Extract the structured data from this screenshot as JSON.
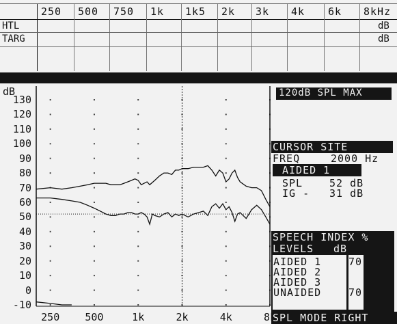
{
  "top_table": {
    "frequencies": [
      "250",
      "500",
      "750",
      "1k",
      "1k5",
      "2k",
      "3k",
      "4k",
      "6k",
      "8kHz"
    ],
    "rows": [
      {
        "label": "HTL",
        "unit": "dB"
      },
      {
        "label": "TARG",
        "unit": "dB"
      }
    ]
  },
  "right_panel": {
    "max_label": "120dB SPL MAX",
    "cursor_title": "CURSOR SITE",
    "freq_label": "FREQ",
    "freq_value": "2000 Hz",
    "aided_label": "AIDED 1",
    "spl_label": "SPL",
    "spl_value": "52 dB",
    "ig_label": "IG -",
    "ig_value": "31 dB",
    "speech_index": "SPEECH INDEX %",
    "levels_label": "LEVELS",
    "levels_unit": "dB",
    "levels": [
      {
        "name": "AIDED 1",
        "value": "70"
      },
      {
        "name": "AIDED 2",
        "value": ""
      },
      {
        "name": "AIDED 3",
        "value": ""
      },
      {
        "name": "UNAIDED",
        "value": "70"
      }
    ],
    "mode": "SPL MODE RIGHT"
  },
  "chart_data": {
    "type": "line",
    "ylabel": "dB",
    "ylim": [
      -10,
      135
    ],
    "y_ticks": [
      130,
      120,
      110,
      100,
      90,
      80,
      70,
      60,
      50,
      40,
      30,
      20,
      10,
      0,
      -10
    ],
    "x_ticks": [
      "250",
      "500",
      "1k",
      "2k",
      "4k",
      "8k"
    ],
    "x_tick_freqs": [
      250,
      500,
      1000,
      2000,
      4000,
      8000
    ],
    "xlim": [
      200,
      8000
    ],
    "cursor_freq": 2000,
    "reference_level": 52,
    "series": [
      {
        "values": [
          [
            200,
            69
          ],
          [
            250,
            70
          ],
          [
            300,
            69
          ],
          [
            350,
            70
          ],
          [
            400,
            71
          ],
          [
            450,
            72
          ],
          [
            500,
            73
          ],
          [
            550,
            73
          ],
          [
            600,
            73
          ],
          [
            650,
            72
          ],
          [
            700,
            72
          ],
          [
            750,
            72
          ],
          [
            800,
            73
          ],
          [
            850,
            74
          ],
          [
            900,
            75
          ],
          [
            950,
            76
          ],
          [
            1000,
            75
          ],
          [
            1050,
            72
          ],
          [
            1100,
            73
          ],
          [
            1150,
            74
          ],
          [
            1200,
            72
          ],
          [
            1300,
            75
          ],
          [
            1400,
            78
          ],
          [
            1500,
            80
          ],
          [
            1600,
            80
          ],
          [
            1700,
            79
          ],
          [
            1800,
            82
          ],
          [
            1900,
            82
          ],
          [
            2000,
            83
          ],
          [
            2200,
            83
          ],
          [
            2400,
            84
          ],
          [
            2600,
            84
          ],
          [
            2800,
            84
          ],
          [
            3000,
            85
          ],
          [
            3200,
            82
          ],
          [
            3400,
            78
          ],
          [
            3600,
            82
          ],
          [
            3800,
            80
          ],
          [
            4000,
            74
          ],
          [
            4200,
            76
          ],
          [
            4400,
            80
          ],
          [
            4600,
            82
          ],
          [
            4800,
            77
          ],
          [
            5000,
            74
          ],
          [
            5500,
            71
          ],
          [
            6000,
            70
          ],
          [
            6500,
            70
          ],
          [
            7000,
            68
          ],
          [
            7500,
            62
          ],
          [
            8000,
            57
          ]
        ]
      },
      {
        "values": [
          [
            200,
            63
          ],
          [
            250,
            63
          ],
          [
            300,
            62
          ],
          [
            350,
            61
          ],
          [
            400,
            60
          ],
          [
            450,
            58
          ],
          [
            500,
            56
          ],
          [
            550,
            54
          ],
          [
            600,
            52
          ],
          [
            650,
            51
          ],
          [
            700,
            51
          ],
          [
            750,
            52
          ],
          [
            800,
            52
          ],
          [
            850,
            53
          ],
          [
            900,
            53
          ],
          [
            950,
            52
          ],
          [
            1000,
            52
          ],
          [
            1050,
            53
          ],
          [
            1100,
            52
          ],
          [
            1150,
            50
          ],
          [
            1200,
            45
          ],
          [
            1250,
            52
          ],
          [
            1300,
            51
          ],
          [
            1400,
            50
          ],
          [
            1500,
            52
          ],
          [
            1600,
            53
          ],
          [
            1700,
            50
          ],
          [
            1800,
            52
          ],
          [
            1900,
            51
          ],
          [
            2000,
            52
          ],
          [
            2200,
            50
          ],
          [
            2400,
            52
          ],
          [
            2600,
            53
          ],
          [
            2800,
            54
          ],
          [
            3000,
            51
          ],
          [
            3200,
            57
          ],
          [
            3400,
            59
          ],
          [
            3600,
            56
          ],
          [
            3800,
            59
          ],
          [
            4000,
            55
          ],
          [
            4200,
            57
          ],
          [
            4400,
            53
          ],
          [
            4600,
            47
          ],
          [
            4800,
            52
          ],
          [
            5000,
            53
          ],
          [
            5500,
            49
          ],
          [
            6000,
            55
          ],
          [
            6500,
            58
          ],
          [
            7000,
            55
          ],
          [
            7500,
            50
          ],
          [
            8000,
            45
          ]
        ]
      },
      {
        "values": [
          [
            200,
            -8
          ],
          [
            250,
            -9
          ],
          [
            300,
            -10
          ],
          [
            350,
            -10
          ]
        ]
      }
    ]
  }
}
